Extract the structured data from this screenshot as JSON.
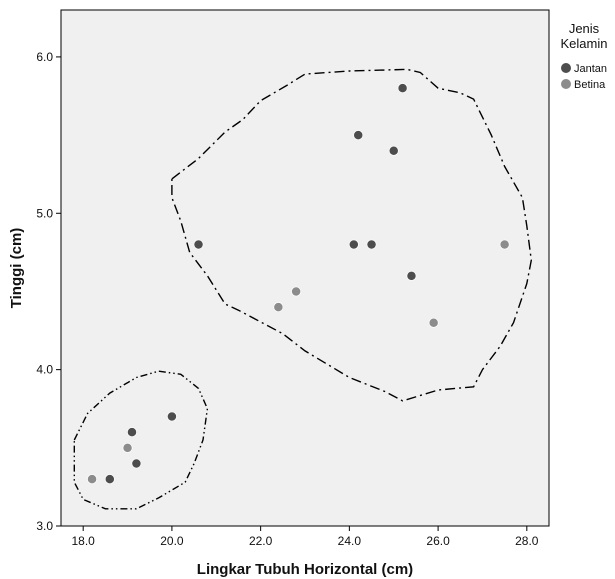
{
  "chart_data": {
    "type": "scatter",
    "xlabel": "Lingkar Tubuh Horizontal (cm)",
    "ylabel": "Tinggi (cm)",
    "xlim": [
      17.5,
      28.5
    ],
    "ylim": [
      3.0,
      6.3
    ],
    "xticks": [
      "18.0",
      "20.0",
      "22.0",
      "24.0",
      "26.0",
      "28.0"
    ],
    "yticks": [
      "3.0",
      "4.0",
      "5.0",
      "6.0"
    ],
    "grid": false,
    "background_color": "#f0f0f0",
    "legend": {
      "title_lines": [
        "Jenis",
        "Kelamin"
      ],
      "placement": "right"
    },
    "series": [
      {
        "name": "Jantan",
        "color": "#4d4d4d",
        "points": [
          {
            "x": 18.6,
            "y": 3.3
          },
          {
            "x": 19.1,
            "y": 3.6
          },
          {
            "x": 19.2,
            "y": 3.4
          },
          {
            "x": 20.0,
            "y": 3.7
          },
          {
            "x": 20.6,
            "y": 4.8
          },
          {
            "x": 24.1,
            "y": 4.8
          },
          {
            "x": 24.2,
            "y": 5.5
          },
          {
            "x": 24.5,
            "y": 4.8
          },
          {
            "x": 25.0,
            "y": 5.4
          },
          {
            "x": 25.2,
            "y": 5.8
          },
          {
            "x": 25.4,
            "y": 4.6
          }
        ]
      },
      {
        "name": "Betina",
        "color": "#8c8c8c",
        "points": [
          {
            "x": 18.2,
            "y": 3.3
          },
          {
            "x": 19.0,
            "y": 3.5
          },
          {
            "x": 22.4,
            "y": 4.4
          },
          {
            "x": 22.8,
            "y": 4.5
          },
          {
            "x": 25.9,
            "y": 4.3
          },
          {
            "x": 27.5,
            "y": 4.8
          }
        ]
      }
    ],
    "cluster_outlines": [
      {
        "style": "dash-dot-dot",
        "points": [
          [
            17.8,
            3.55
          ],
          [
            18.1,
            3.72
          ],
          [
            18.6,
            3.85
          ],
          [
            19.2,
            3.95
          ],
          [
            19.7,
            3.99
          ],
          [
            20.2,
            3.97
          ],
          [
            20.6,
            3.88
          ],
          [
            20.8,
            3.75
          ],
          [
            20.7,
            3.55
          ],
          [
            20.5,
            3.4
          ],
          [
            20.3,
            3.28
          ],
          [
            19.7,
            3.18
          ],
          [
            19.2,
            3.11
          ],
          [
            18.5,
            3.11
          ],
          [
            18.0,
            3.17
          ],
          [
            17.8,
            3.28
          ],
          [
            17.8,
            3.55
          ]
        ]
      },
      {
        "style": "dash-dot",
        "points": [
          [
            20.0,
            5.22
          ],
          [
            20.6,
            5.35
          ],
          [
            21.2,
            5.52
          ],
          [
            21.6,
            5.6
          ],
          [
            22.0,
            5.72
          ],
          [
            22.6,
            5.82
          ],
          [
            23.0,
            5.89
          ],
          [
            24.0,
            5.91
          ],
          [
            25.3,
            5.92
          ],
          [
            25.6,
            5.9
          ],
          [
            26.0,
            5.8
          ],
          [
            26.5,
            5.77
          ],
          [
            26.8,
            5.73
          ],
          [
            27.2,
            5.5
          ],
          [
            27.5,
            5.3
          ],
          [
            27.9,
            5.1
          ],
          [
            28.0,
            4.92
          ],
          [
            28.1,
            4.7
          ],
          [
            28.0,
            4.55
          ],
          [
            27.7,
            4.3
          ],
          [
            27.4,
            4.15
          ],
          [
            27.0,
            4.0
          ],
          [
            26.8,
            3.89
          ],
          [
            26.0,
            3.87
          ],
          [
            25.2,
            3.8
          ],
          [
            24.8,
            3.86
          ],
          [
            24.0,
            3.95
          ],
          [
            23.0,
            4.12
          ],
          [
            22.5,
            4.23
          ],
          [
            21.5,
            4.38
          ],
          [
            21.2,
            4.42
          ],
          [
            20.8,
            4.6
          ],
          [
            20.4,
            4.75
          ],
          [
            20.2,
            4.95
          ],
          [
            20.0,
            5.1
          ],
          [
            20.0,
            5.22
          ]
        ]
      }
    ]
  }
}
